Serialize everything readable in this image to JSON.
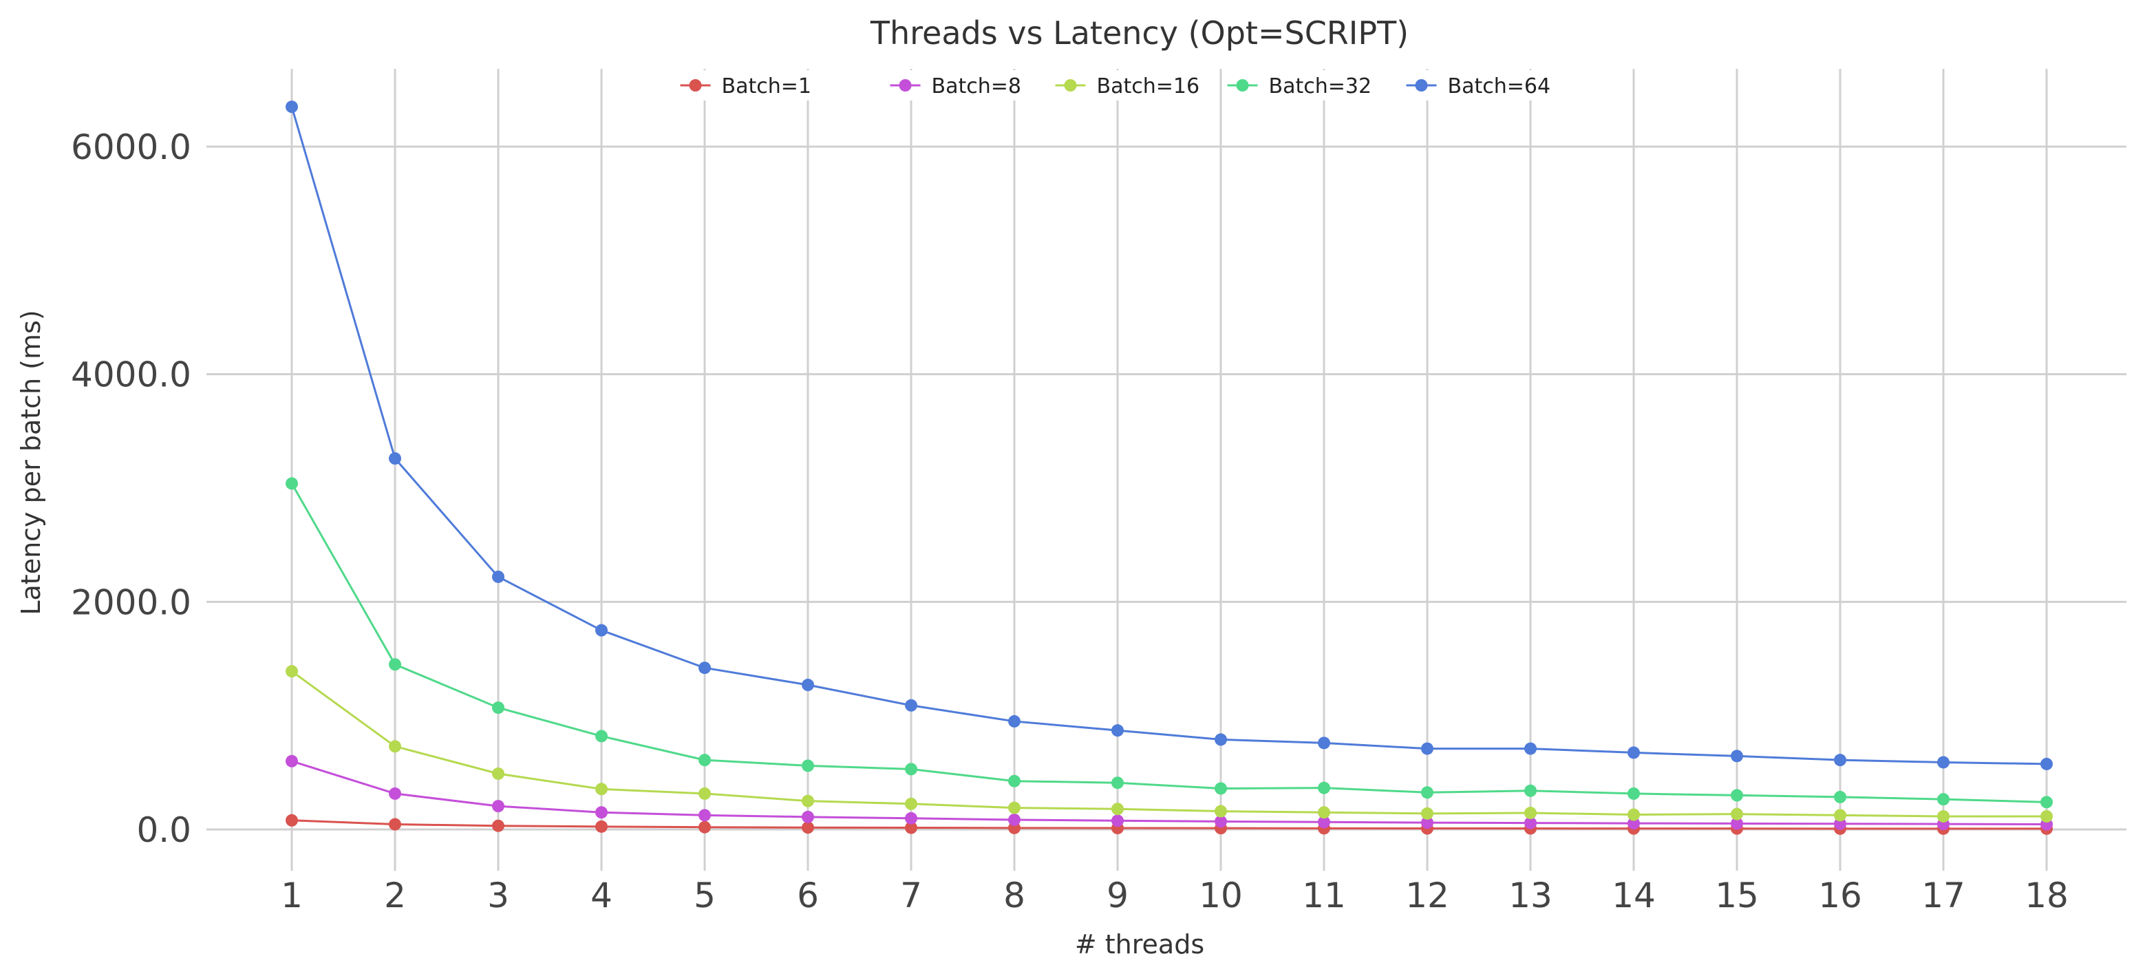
{
  "chart_data": {
    "type": "line",
    "title": "Threads vs Latency (Opt=SCRIPT)",
    "xlabel": "# threads",
    "ylabel": "Latency per batch (ms)",
    "x": [
      1,
      2,
      3,
      4,
      5,
      6,
      7,
      8,
      9,
      10,
      11,
      12,
      13,
      14,
      15,
      16,
      17,
      18
    ],
    "xticks": [
      "1",
      "2",
      "3",
      "4",
      "5",
      "6",
      "7",
      "8",
      "9",
      "10",
      "11",
      "12",
      "13",
      "14",
      "15",
      "16",
      "17",
      "18"
    ],
    "yticks": [
      0,
      2000,
      4000,
      6000
    ],
    "ytick_labels": [
      "0.0",
      "2000.0",
      "4000.0",
      "6000.0"
    ],
    "ylim": [
      -250,
      6700
    ],
    "grid": true,
    "legend_position": "top-center",
    "series": [
      {
        "name": "Batch=1",
        "color": "#d9534f",
        "values": [
          80,
          45,
          32,
          25,
          20,
          17,
          15,
          13,
          12,
          11,
          10,
          9,
          9,
          8,
          8,
          7,
          7,
          7
        ]
      },
      {
        "name": "Batch=8",
        "color": "#c44fd9",
        "values": [
          600,
          315,
          205,
          150,
          125,
          110,
          98,
          85,
          77,
          70,
          65,
          60,
          57,
          54,
          52,
          50,
          48,
          45
        ]
      },
      {
        "name": "Batch=16",
        "color": "#b5d94f",
        "values": [
          1390,
          730,
          490,
          355,
          315,
          250,
          225,
          190,
          180,
          160,
          150,
          140,
          145,
          130,
          135,
          125,
          115,
          115
        ]
      },
      {
        "name": "Batch=32",
        "color": "#4fd98a",
        "values": [
          3040,
          1450,
          1070,
          820,
          610,
          560,
          530,
          425,
          410,
          360,
          365,
          325,
          340,
          315,
          300,
          285,
          265,
          240
        ]
      },
      {
        "name": "Batch=64",
        "color": "#4f7bd9",
        "values": [
          6350,
          3260,
          2220,
          1750,
          1420,
          1270,
          1090,
          950,
          870,
          790,
          760,
          710,
          710,
          675,
          645,
          610,
          590,
          575
        ]
      }
    ]
  }
}
